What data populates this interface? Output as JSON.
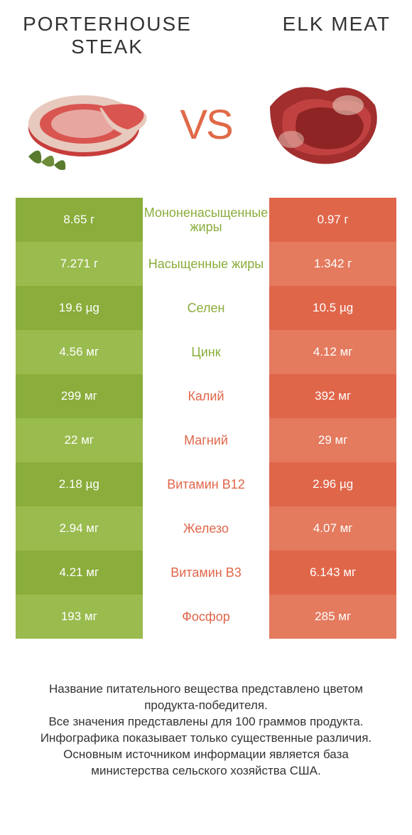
{
  "colors": {
    "green_a": "#8aad3b",
    "green_b": "#9abb4e",
    "orange_a": "#e0664a",
    "orange_b": "#e47a5e",
    "vs": "#e06a48",
    "mid_green_txt": "#8aad3b",
    "mid_orange_txt": "#e0664a",
    "title_txt": "#333333"
  },
  "left_title": "PORTERHOUSE STEAK",
  "right_title": "ELK MEAT",
  "vs_label": "VS",
  "rows": [
    {
      "left": "8.65 г",
      "mid": "Мононенасыщенные жиры",
      "right": "0.97 г",
      "win": "left"
    },
    {
      "left": "7.271 г",
      "mid": "Насыщенные жиры",
      "right": "1.342 г",
      "win": "left"
    },
    {
      "left": "19.6 µg",
      "mid": "Селен",
      "right": "10.5 µg",
      "win": "left"
    },
    {
      "left": "4.56 мг",
      "mid": "Цинк",
      "right": "4.12 мг",
      "win": "left"
    },
    {
      "left": "299 мг",
      "mid": "Калий",
      "right": "392 мг",
      "win": "right"
    },
    {
      "left": "22 мг",
      "mid": "Магний",
      "right": "29 мг",
      "win": "right"
    },
    {
      "left": "2.18 µg",
      "mid": "Витамин B12",
      "right": "2.96 µg",
      "win": "right"
    },
    {
      "left": "2.94 мг",
      "mid": "Железо",
      "right": "4.07 мг",
      "win": "right"
    },
    {
      "left": "4.21 мг",
      "mid": "Витамин B3",
      "right": "6.143 мг",
      "win": "right"
    },
    {
      "left": "193 мг",
      "mid": "Фосфор",
      "right": "285 мг",
      "win": "right"
    }
  ],
  "footer": [
    "Название питательного вещества представлено цветом продукта-победителя.",
    "Все значения представлены для 100 граммов продукта.",
    "Инфографика показывает только существенные различия.",
    "Основным источником информации является база министерства сельского хозяйства США."
  ]
}
